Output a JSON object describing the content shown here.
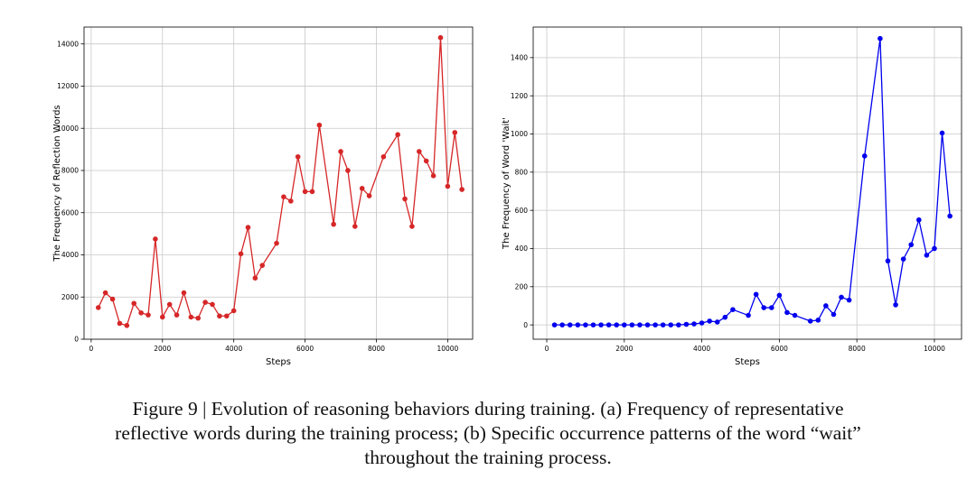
{
  "chart_data": [
    {
      "type": "line",
      "xlabel": "Steps",
      "ylabel": "The Frequency of Reflection Words",
      "xlim": [
        -200,
        10700
      ],
      "ylim": [
        0,
        14800
      ],
      "xticks": [
        0,
        2000,
        4000,
        6000,
        8000,
        10000
      ],
      "yticks": [
        0,
        2000,
        4000,
        6000,
        8000,
        10000,
        12000,
        14000
      ],
      "grid": true,
      "color": "#d62728",
      "x": [
        200,
        400,
        600,
        800,
        1000,
        1200,
        1400,
        1600,
        1800,
        2000,
        2200,
        2400,
        2600,
        2800,
        3000,
        3200,
        3400,
        3600,
        3800,
        4000,
        4200,
        4400,
        4600,
        4800,
        5200,
        5400,
        5600,
        5800,
        6000,
        6200,
        6400,
        6800,
        7000,
        7200,
        7400,
        7600,
        7800,
        8200,
        8600,
        8800,
        9000,
        9200,
        9400,
        9600,
        9800,
        10000,
        10200,
        10400
      ],
      "y": [
        1500,
        2200,
        1900,
        750,
        650,
        1700,
        1250,
        1150,
        4750,
        1050,
        1650,
        1150,
        2200,
        1050,
        1000,
        1750,
        1650,
        1100,
        1100,
        1350,
        4050,
        5300,
        2900,
        3500,
        4550,
        6750,
        6550,
        8650,
        7000,
        7000,
        10150,
        5450,
        8900,
        8000,
        5350,
        7150,
        6800,
        8650,
        9700,
        6650,
        5350,
        8900,
        8450,
        7750,
        14300,
        7250,
        9800,
        7100
      ]
    },
    {
      "type": "line",
      "xlabel": "Steps",
      "ylabel": "The Frequency of Word 'Wait'",
      "xlim": [
        -350,
        10700
      ],
      "ylim": [
        -75,
        1560
      ],
      "xticks": [
        0,
        2000,
        4000,
        6000,
        8000,
        10000
      ],
      "yticks": [
        0,
        200,
        400,
        600,
        800,
        1000,
        1200,
        1400
      ],
      "grid": true,
      "color": "#0000ee",
      "x": [
        200,
        400,
        600,
        800,
        1000,
        1200,
        1400,
        1600,
        1800,
        2000,
        2200,
        2400,
        2600,
        2800,
        3000,
        3200,
        3400,
        3600,
        3800,
        4000,
        4200,
        4400,
        4600,
        4800,
        5200,
        5400,
        5600,
        5800,
        6000,
        6200,
        6400,
        6800,
        7000,
        7200,
        7400,
        7600,
        7800,
        8200,
        8600,
        8800,
        9000,
        9200,
        9400,
        9600,
        9800,
        10000,
        10200,
        10400
      ],
      "y": [
        0,
        0,
        0,
        0,
        0,
        0,
        0,
        0,
        0,
        0,
        0,
        0,
        0,
        0,
        0,
        0,
        0,
        3,
        5,
        10,
        20,
        15,
        40,
        80,
        50,
        160,
        90,
        90,
        155,
        65,
        50,
        20,
        25,
        100,
        55,
        145,
        130,
        885,
        1500,
        335,
        105,
        345,
        420,
        550,
        365,
        400,
        1005,
        570
      ]
    }
  ],
  "caption": {
    "line1": "Figure 9 | Evolution of reasoning behaviors during training. (a) Frequency of representative",
    "line2": "reflective words during the training process; (b) Specific occurrence patterns of the word “wait”",
    "line3": "throughout the training process."
  }
}
